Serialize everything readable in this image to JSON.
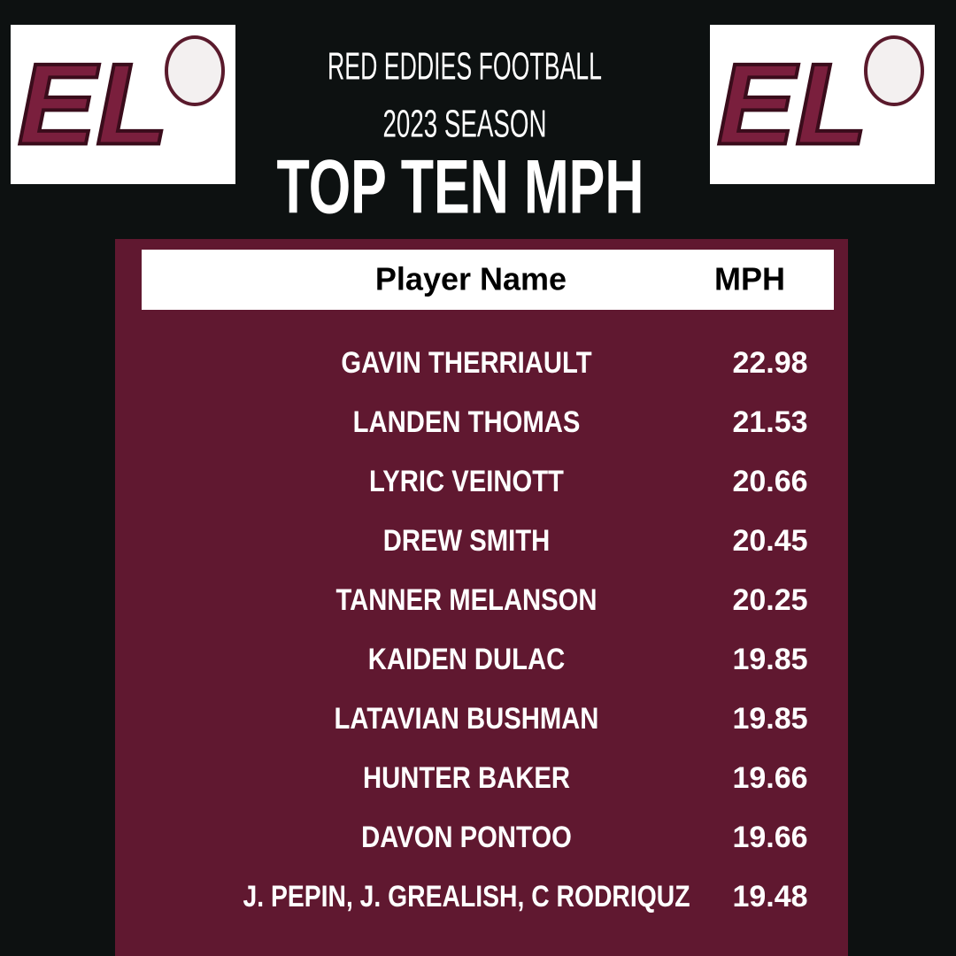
{
  "header": {
    "line1": "RED EDDIES FOOTBALL",
    "line2": "2023 SEASON",
    "title": "TOP TEN MPH",
    "logo_text": "EL"
  },
  "table": {
    "columns": [
      "Player Name",
      "MPH"
    ],
    "rows": [
      [
        "GAVIN THERRIAULT",
        "22.98"
      ],
      [
        "LANDEN THOMAS",
        "21.53"
      ],
      [
        "LYRIC VEINOTT",
        "20.66"
      ],
      [
        "DREW SMITH",
        "20.45"
      ],
      [
        "TANNER MELANSON",
        "20.25"
      ],
      [
        "KAIDEN DULAC",
        "19.85"
      ],
      [
        "LATAVIAN BUSHMAN",
        "19.85"
      ],
      [
        "HUNTER BAKER",
        "19.66"
      ],
      [
        "DAVON PONTOO",
        "19.66"
      ],
      [
        "J. PEPIN, J. GREALISH, C RODRIQUZ",
        "19.48"
      ]
    ]
  }
}
